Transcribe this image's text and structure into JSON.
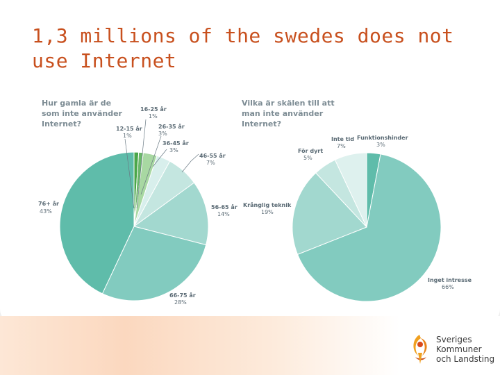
{
  "slide": {
    "title": "1,3 millions of the swedes does not use Internet"
  },
  "chart_data": [
    {
      "type": "pie",
      "title": "Hur gamla är de som inte använder Internet?",
      "slices": [
        {
          "label": "12-15 år",
          "value": 1,
          "pct_label": "1%",
          "color": "#4aa64a"
        },
        {
          "label": "16-25 år",
          "value": 1,
          "pct_label": "1%",
          "color": "#6ab86a"
        },
        {
          "label": "26-35 år",
          "value": 3,
          "pct_label": "3%",
          "color": "#a8d8a2"
        },
        {
          "label": "36-45 år",
          "value": 3,
          "pct_label": "3%",
          "color": "#d8efec"
        },
        {
          "label": "46-55 år",
          "value": 7,
          "pct_label": "7%",
          "color": "#c4e6e0"
        },
        {
          "label": "56-65 år",
          "value": 14,
          "pct_label": "14%",
          "color": "#a2d8cf"
        },
        {
          "label": "66-75 år",
          "value": 28,
          "pct_label": "28%",
          "color": "#82cbbf"
        },
        {
          "label": "76+ år",
          "value": 43,
          "pct_label": "43%",
          "color": "#5fbcaa"
        }
      ]
    },
    {
      "type": "pie",
      "title": "Vilka är skälen till att man inte använder Internet?",
      "slices": [
        {
          "label": "Funktionshinder",
          "value": 3,
          "pct_label": "3%",
          "color": "#5fbcaa"
        },
        {
          "label": "Inget intresse",
          "value": 66,
          "pct_label": "66%",
          "color": "#82cbbf"
        },
        {
          "label": "Krånglig teknik",
          "value": 19,
          "pct_label": "19%",
          "color": "#a2d8cf"
        },
        {
          "label": "För dyrt",
          "value": 5,
          "pct_label": "5%",
          "color": "#c4e6e0"
        },
        {
          "label": "Inte tid",
          "value": 7,
          "pct_label": "7%",
          "color": "#def1ee"
        }
      ]
    }
  ],
  "logo": {
    "line1": "Sveriges",
    "line2": "Kommuner",
    "line3": "och Landsting"
  }
}
